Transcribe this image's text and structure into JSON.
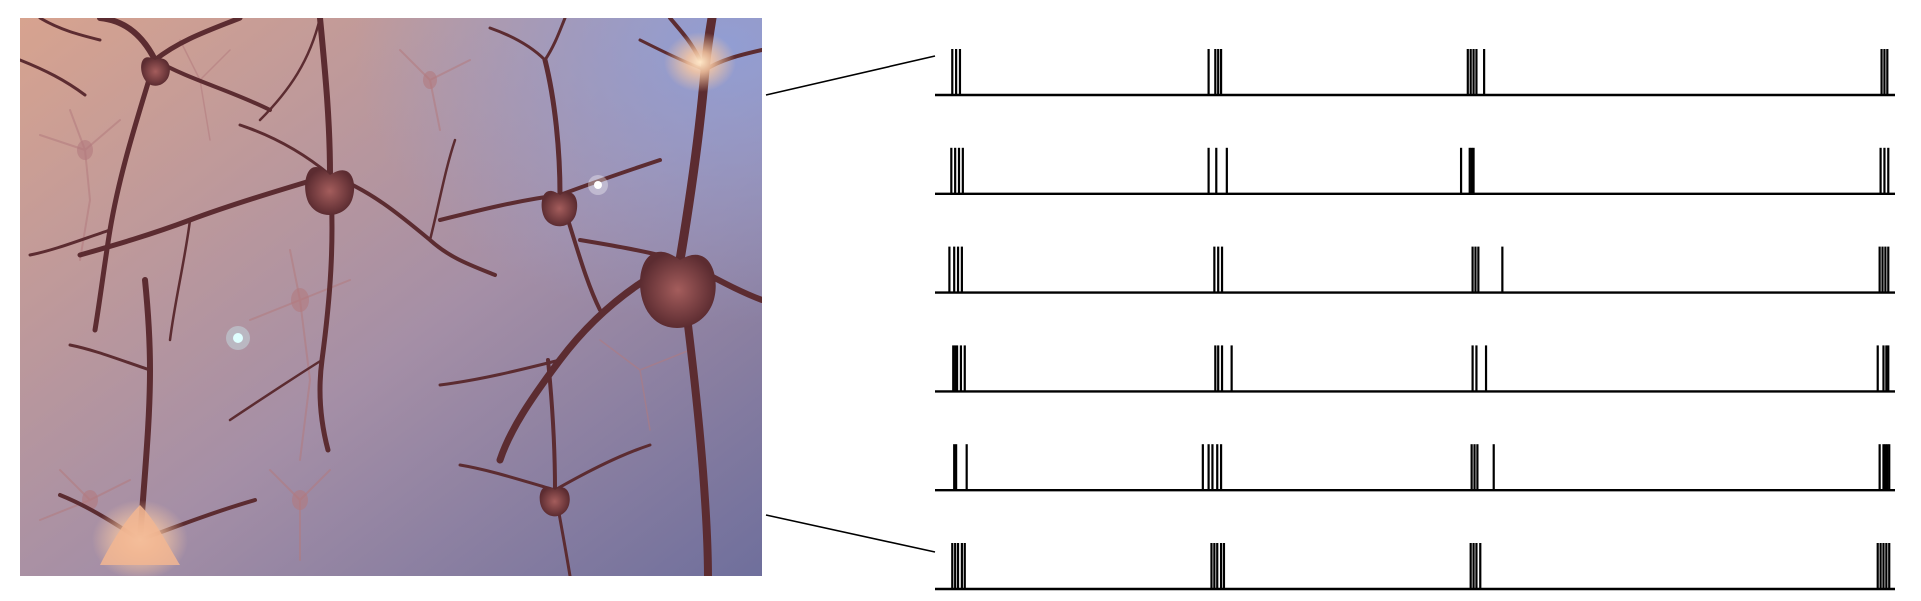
{
  "panel": {
    "image_subject": "neuron-network-render",
    "colors": {
      "bg_warm": "#d7a38f",
      "bg_mid": "#a58fa6",
      "bg_cool": "#6f6f9c",
      "bg_top_right": "#8f9fd8",
      "neuron_body": "#8a4a4c",
      "neuron_dark": "#5c2c31",
      "neuron_highlight": "#f7c7a2",
      "glow": "#ffe8c8"
    }
  },
  "connector": {
    "color": "#000000"
  },
  "raster": {
    "trace_color": "#000000",
    "time_range": [
      0,
      100
    ],
    "rows": [
      {
        "spikes": [
          1.8,
          2.2,
          2.6,
          28.5,
          29.2,
          29.5,
          29.8,
          55.5,
          55.8,
          56.1,
          56.4,
          57.2,
          98.6,
          98.9,
          99.2
        ]
      },
      {
        "spikes": [
          1.7,
          2.1,
          2.5,
          2.9,
          28.5,
          29.3,
          30.4,
          54.8,
          55.7,
          55.9,
          56.1,
          98.5,
          98.9,
          99.3
        ]
      },
      {
        "spikes": [
          1.5,
          2.0,
          2.4,
          2.8,
          29.1,
          29.5,
          29.9,
          56.0,
          56.3,
          56.6,
          59.1,
          98.4,
          98.7,
          99.0,
          99.3
        ]
      },
      {
        "spikes": [
          1.9,
          2.1,
          2.3,
          2.7,
          3.1,
          29.2,
          29.5,
          29.9,
          30.9,
          56.0,
          56.4,
          57.4,
          98.2,
          98.8,
          99.1,
          99.3
        ]
      },
      {
        "spikes": [
          2.0,
          2.2,
          3.3,
          27.9,
          28.5,
          28.9,
          29.4,
          29.8,
          55.9,
          56.2,
          56.5,
          58.2,
          98.4,
          98.8,
          99.0,
          99.2,
          99.4
        ]
      },
      {
        "spikes": [
          1.8,
          2.1,
          2.4,
          2.8,
          3.1,
          28.8,
          29.1,
          29.4,
          29.8,
          30.1,
          55.8,
          56.1,
          56.4,
          56.8,
          98.2,
          98.5,
          98.8,
          99.1,
          99.4
        ]
      }
    ]
  }
}
